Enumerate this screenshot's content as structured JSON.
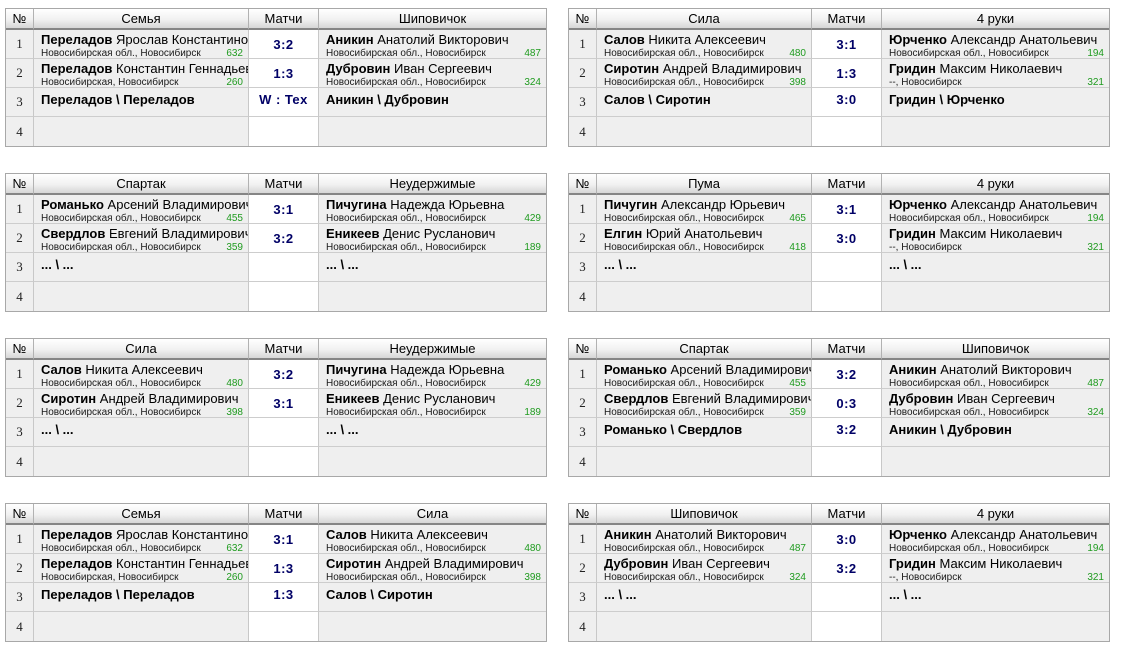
{
  "labels": {
    "number": "№",
    "matches": "Матчи"
  },
  "colors": {
    "score_text": "#000066",
    "rating_text": "#1f9b1f",
    "cell_background": "#efefef",
    "score_cell_background": "#ffffff",
    "header_gradient_bottom": "#d6d6d6"
  },
  "tables": [
    {
      "team_left": "Семья",
      "team_right": "Шиповичок",
      "rows": [
        {
          "num": "1",
          "type": "singles",
          "left": {
            "surname": "Переладов",
            "given": "Ярослав Константинович",
            "region": "Новосибирская обл., Новосибирск",
            "rating": "632"
          },
          "score": "3:2",
          "right": {
            "surname": "Аникин",
            "given": "Анатолий Викторович",
            "region": "Новосибирская обл., Новосибирск",
            "rating": "487"
          }
        },
        {
          "num": "2",
          "type": "singles",
          "left": {
            "surname": "Переладов",
            "given": "Константин Геннадьевич",
            "region": "Новосибирская, Новосибирск",
            "rating": "260"
          },
          "score": "1:3",
          "right": {
            "surname": "Дубровин",
            "given": "Иван Сергеевич",
            "region": "Новосибирская обл., Новосибирск",
            "rating": "324"
          }
        },
        {
          "num": "3",
          "type": "doubles",
          "left_pair": "Переладов \\ Переладов",
          "score": "W : Tex",
          "right_pair": "Аникин \\ Дубровин"
        },
        {
          "num": "4",
          "type": "empty"
        }
      ]
    },
    {
      "team_left": "Сила",
      "team_right": "4 руки",
      "rows": [
        {
          "num": "1",
          "type": "singles",
          "left": {
            "surname": "Салов",
            "given": "Никита Алексеевич",
            "region": "Новосибирская обл., Новосибирск",
            "rating": "480"
          },
          "score": "3:1",
          "right": {
            "surname": "Юрченко",
            "given": "Александр Анатольевич",
            "region": "Новосибирская обл., Новосибирск",
            "rating": "194"
          }
        },
        {
          "num": "2",
          "type": "singles",
          "left": {
            "surname": "Сиротин",
            "given": "Андрей Владимирович",
            "region": "Новосибирская обл., Новосибирск",
            "rating": "398"
          },
          "score": "1:3",
          "right": {
            "surname": "Гридин",
            "given": "Максим Николаевич",
            "region": "--, Новосибирск",
            "rating": "321"
          }
        },
        {
          "num": "3",
          "type": "doubles",
          "left_pair": "Салов \\ Сиротин",
          "score": "3:0",
          "right_pair": "Гридин \\ Юрченко"
        },
        {
          "num": "4",
          "type": "empty"
        }
      ]
    },
    {
      "team_left": "Спартак",
      "team_right": "Неудержимые",
      "rows": [
        {
          "num": "1",
          "type": "singles",
          "left": {
            "surname": "Романько",
            "given": "Арсений Владимирович",
            "region": "Новосибирская обл., Новосибирск",
            "rating": "455"
          },
          "score": "3:1",
          "right": {
            "surname": "Пичугина",
            "given": "Надежда Юрьевна",
            "region": "Новосибирская обл., Новосибирск",
            "rating": "429"
          }
        },
        {
          "num": "2",
          "type": "singles",
          "left": {
            "surname": "Свердлов",
            "given": "Евгений Владимирович",
            "region": "Новосибирская обл., Новосибирск",
            "rating": "359"
          },
          "score": "3:2",
          "right": {
            "surname": "Еникеев",
            "given": "Денис Русланович",
            "region": "Новосибирская обл., Новосибирск",
            "rating": "189"
          }
        },
        {
          "num": "3",
          "type": "doubles",
          "left_pair": "... \\ ...",
          "right_pair": "... \\ ..."
        },
        {
          "num": "4",
          "type": "empty"
        }
      ]
    },
    {
      "team_left": "Пума",
      "team_right": "4 руки",
      "rows": [
        {
          "num": "1",
          "type": "singles",
          "left": {
            "surname": "Пичугин",
            "given": "Александр Юрьевич",
            "region": "Новосибирская обл., Новосибирск",
            "rating": "465"
          },
          "score": "3:1",
          "right": {
            "surname": "Юрченко",
            "given": "Александр Анатольевич",
            "region": "Новосибирская обл., Новосибирск",
            "rating": "194"
          }
        },
        {
          "num": "2",
          "type": "singles",
          "left": {
            "surname": "Елгин",
            "given": "Юрий Анатольевич",
            "region": "Новосибирская обл., Новосибирск",
            "rating": "418"
          },
          "score": "3:0",
          "right": {
            "surname": "Гридин",
            "given": "Максим Николаевич",
            "region": "--, Новосибирск",
            "rating": "321"
          }
        },
        {
          "num": "3",
          "type": "doubles",
          "left_pair": "... \\ ...",
          "right_pair": "... \\ ..."
        },
        {
          "num": "4",
          "type": "empty"
        }
      ]
    },
    {
      "team_left": "Сила",
      "team_right": "Неудержимые",
      "rows": [
        {
          "num": "1",
          "type": "singles",
          "left": {
            "surname": "Салов",
            "given": "Никита Алексеевич",
            "region": "Новосибирская обл., Новосибирск",
            "rating": "480"
          },
          "score": "3:2",
          "right": {
            "surname": "Пичугина",
            "given": "Надежда Юрьевна",
            "region": "Новосибирская обл., Новосибирск",
            "rating": "429"
          }
        },
        {
          "num": "2",
          "type": "singles",
          "left": {
            "surname": "Сиротин",
            "given": "Андрей Владимирович",
            "region": "Новосибирская обл., Новосибирск",
            "rating": "398"
          },
          "score": "3:1",
          "right": {
            "surname": "Еникеев",
            "given": "Денис Русланович",
            "region": "Новосибирская обл., Новосибирск",
            "rating": "189"
          }
        },
        {
          "num": "3",
          "type": "doubles",
          "left_pair": "... \\ ...",
          "right_pair": "... \\ ..."
        },
        {
          "num": "4",
          "type": "empty"
        }
      ]
    },
    {
      "team_left": "Спартак",
      "team_right": "Шиповичок",
      "rows": [
        {
          "num": "1",
          "type": "singles",
          "left": {
            "surname": "Романько",
            "given": "Арсений Владимирович",
            "region": "Новосибирская обл., Новосибирск",
            "rating": "455"
          },
          "score": "3:2",
          "right": {
            "surname": "Аникин",
            "given": "Анатолий Викторович",
            "region": "Новосибирская обл., Новосибирск",
            "rating": "487"
          }
        },
        {
          "num": "2",
          "type": "singles",
          "left": {
            "surname": "Свердлов",
            "given": "Евгений Владимирович",
            "region": "Новосибирская обл., Новосибирск",
            "rating": "359"
          },
          "score": "0:3",
          "right": {
            "surname": "Дубровин",
            "given": "Иван Сергеевич",
            "region": "Новосибирская обл., Новосибирск",
            "rating": "324"
          }
        },
        {
          "num": "3",
          "type": "doubles",
          "left_pair": "Романько \\ Свердлов",
          "score": "3:2",
          "right_pair": "Аникин \\ Дубровин"
        },
        {
          "num": "4",
          "type": "empty"
        }
      ]
    },
    {
      "team_left": "Семья",
      "team_right": "Сила",
      "rows": [
        {
          "num": "1",
          "type": "singles",
          "left": {
            "surname": "Переладов",
            "given": "Ярослав Константинович",
            "region": "Новосибирская обл., Новосибирск",
            "rating": "632"
          },
          "score": "3:1",
          "right": {
            "surname": "Салов",
            "given": "Никита Алексеевич",
            "region": "Новосибирская обл., Новосибирск",
            "rating": "480"
          }
        },
        {
          "num": "2",
          "type": "singles",
          "left": {
            "surname": "Переладов",
            "given": "Константин Геннадьевич",
            "region": "Новосибирская, Новосибирск",
            "rating": "260"
          },
          "score": "1:3",
          "right": {
            "surname": "Сиротин",
            "given": "Андрей Владимирович",
            "region": "Новосибирская обл., Новосибирск",
            "rating": "398"
          }
        },
        {
          "num": "3",
          "type": "doubles",
          "left_pair": "Переладов \\ Переладов",
          "score": "1:3",
          "right_pair": "Салов \\ Сиротин"
        },
        {
          "num": "4",
          "type": "empty"
        }
      ]
    },
    {
      "team_left": "Шиповичок",
      "team_right": "4 руки",
      "rows": [
        {
          "num": "1",
          "type": "singles",
          "left": {
            "surname": "Аникин",
            "given": "Анатолий Викторович",
            "region": "Новосибирская обл., Новосибирск",
            "rating": "487"
          },
          "score": "3:0",
          "right": {
            "surname": "Юрченко",
            "given": "Александр Анатольевич",
            "region": "Новосибирская обл., Новосибирск",
            "rating": "194"
          }
        },
        {
          "num": "2",
          "type": "singles",
          "left": {
            "surname": "Дубровин",
            "given": "Иван Сергеевич",
            "region": "Новосибирская обл., Новосибирск",
            "rating": "324"
          },
          "score": "3:2",
          "right": {
            "surname": "Гридин",
            "given": "Максим Николаевич",
            "region": "--, Новосибирск",
            "rating": "321"
          }
        },
        {
          "num": "3",
          "type": "doubles",
          "left_pair": "... \\ ...",
          "right_pair": "... \\ ..."
        },
        {
          "num": "4",
          "type": "empty"
        }
      ]
    }
  ]
}
